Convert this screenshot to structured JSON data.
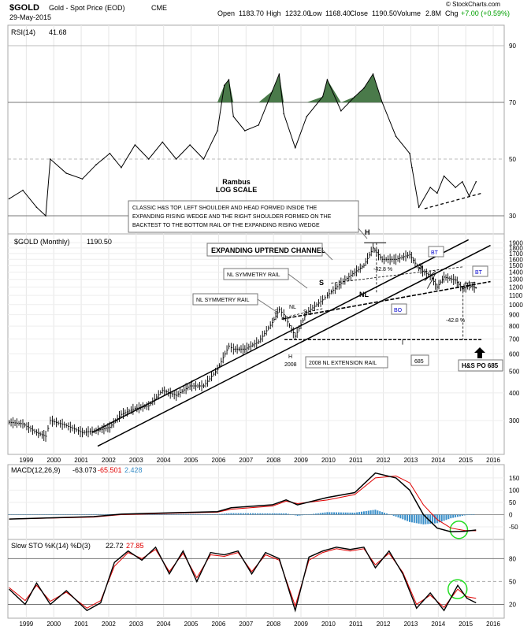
{
  "header": {
    "symbol": "$GOLD",
    "desc": "Gold - Spot Price (EOD)",
    "exchange": "CME",
    "date": "29-May-2015",
    "open_lbl": "Open",
    "open": "1183.70",
    "high_lbl": "High",
    "high": "1232.00",
    "low_lbl": "Low",
    "low": "1168.40",
    "close_lbl": "Close",
    "close": "1190.50",
    "volume_lbl": "Volume",
    "volume": "2.8M",
    "chg_lbl": "Chg",
    "chg": "+7.00 (+0.59%)",
    "chg_color": "#00a000",
    "watermark": "© StockCharts.com"
  },
  "author": {
    "name": "Rambus",
    "scale": "LOG SCALE"
  },
  "colors": {
    "rsi_fill": "#4a7a4a",
    "macd_signal": "#e00000",
    "macd_hist": "#3a8fc9",
    "sto_d": "#e00000",
    "circle": "#22dd22",
    "bt": "#0000cc"
  },
  "rsi_panel": {
    "label": "RSI(14)",
    "value": "41.68"
  },
  "price_panel": {
    "label": "$GOLD (Monthly)",
    "value": "1190.50"
  },
  "macd_panel": {
    "label": "MACD(12,26,9)",
    "v1": "-63.073",
    "v2": "-65.501",
    "v3": "2.428"
  },
  "sto_panel": {
    "label": "Slow STO %K(14) %D(3)",
    "v1": "22.72",
    "v2": "27.85"
  },
  "years": [
    "1999",
    "2000",
    "2001",
    "2002",
    "2003",
    "2004",
    "2005",
    "2006",
    "2007",
    "2008",
    "2009",
    "2010",
    "2011",
    "2012",
    "2013",
    "2014",
    "2015",
    "2016"
  ],
  "annotations": {
    "box1": "CLASSIC H&S TOP. LEFT SHOULDER AND HEAD FORMED INSIDE THE",
    "box2": "EXPANDING RISING WEDGE AND THE RIGHT SHOULDER FORMED ON THE",
    "box3": "BACKTEST TO THE BOTTOM RAIL OF THE EXPANDING RISING WEDGE",
    "channel": "EXPANDING UPTREND CHANNEL",
    "nl_sym1": "NL SYMMETRY RAIL",
    "nl_sym2": "NL SYMMETRY RAIL",
    "nl_ext": "2008 NL EXTENSION RAIL",
    "po": "H&S PO 685",
    "val685": "685",
    "pct1": "-42.8 %",
    "pct2": "-42.8 %",
    "nl": "NL",
    "nl2": "NL",
    "h1": "H",
    "h2": "H",
    "s1": "S",
    "s2": "S",
    "s3": "S",
    "s4": "S",
    "y2008": "2008",
    "bt1": "BT",
    "bt2": "BT",
    "bo": "BO"
  },
  "chart_data": [
    {
      "type": "line",
      "title": "RSI(14)",
      "ylim": [
        25,
        95
      ],
      "yticks": [
        30,
        50,
        70,
        90
      ],
      "x": [
        "1998-05",
        "1998-11",
        "1999-05",
        "1999-09",
        "1999-11",
        "2000-06",
        "2001-01",
        "2001-07",
        "2002-01",
        "2002-06",
        "2002-12",
        "2003-06",
        "2003-12",
        "2004-06",
        "2004-12",
        "2005-06",
        "2005-12",
        "2006-03",
        "2006-05",
        "2006-07",
        "2006-12",
        "2007-06",
        "2007-12",
        "2008-03",
        "2008-05",
        "2008-10",
        "2009-03",
        "2009-10",
        "2009-12",
        "2010-06",
        "2010-12",
        "2011-04",
        "2011-08",
        "2011-12",
        "2012-06",
        "2012-12",
        "2013-01",
        "2013-04",
        "2013-09",
        "2013-12",
        "2014-03",
        "2014-08",
        "2014-11",
        "2015-02",
        "2015-05"
      ],
      "values": [
        36,
        39,
        33,
        30,
        50,
        45,
        43,
        48,
        52,
        47,
        55,
        50,
        56,
        50,
        55,
        50,
        60,
        76,
        78,
        65,
        60,
        62,
        74,
        80,
        66,
        54,
        65,
        72,
        78,
        67,
        72,
        75,
        80,
        70,
        58,
        52,
        47,
        33,
        40,
        38,
        44,
        40,
        42,
        37,
        42
      ]
    },
    {
      "type": "bar",
      "title": "$GOLD (Monthly)",
      "scale": "log",
      "ylim": [
        220,
        2000
      ],
      "yticks": [
        300,
        400,
        500,
        600,
        700,
        800,
        900,
        1000,
        1100,
        1200,
        1300,
        1400,
        1500,
        1600,
        1700,
        1800,
        1900
      ],
      "x": [
        "1998-05",
        "1998-11",
        "1999-05",
        "1999-09",
        "1999-11",
        "2000-06",
        "2001-01",
        "2001-07",
        "2002-01",
        "2002-06",
        "2002-12",
        "2003-06",
        "2003-12",
        "2004-06",
        "2004-12",
        "2005-06",
        "2005-12",
        "2006-05",
        "2006-07",
        "2006-12",
        "2007-06",
        "2007-12",
        "2008-03",
        "2008-05",
        "2008-10",
        "2009-03",
        "2009-10",
        "2009-12",
        "2010-06",
        "2010-12",
        "2011-04",
        "2011-08",
        "2011-12",
        "2012-06",
        "2012-12",
        "2013-04",
        "2013-09",
        "2013-12",
        "2014-03",
        "2014-08",
        "2014-11",
        "2015-02",
        "2015-05"
      ],
      "values": [
        295,
        290,
        265,
        255,
        300,
        285,
        265,
        270,
        280,
        320,
        340,
        350,
        410,
        390,
        430,
        430,
        510,
        650,
        630,
        630,
        680,
        830,
        950,
        900,
        720,
        920,
        1050,
        1100,
        1250,
        1400,
        1500,
        1800,
        1600,
        1600,
        1680,
        1450,
        1350,
        1200,
        1330,
        1290,
        1180,
        1220,
        1190
      ]
    },
    {
      "type": "line",
      "title": "MACD(12,26,9)",
      "ylim": [
        -95,
        185
      ],
      "yticks": [
        -50,
        0,
        50,
        100,
        150
      ],
      "x": [
        "1998-05",
        "2001-06",
        "2002-06",
        "2004-06",
        "2005-12",
        "2006-06",
        "2007-12",
        "2008-06",
        "2008-11",
        "2009-12",
        "2010-12",
        "2011-09",
        "2012-06",
        "2012-12",
        "2013-06",
        "2013-12",
        "2014-06",
        "2014-12",
        "2015-05"
      ],
      "series": [
        {
          "name": "MACD",
          "values": [
            -18,
            -8,
            2,
            8,
            12,
            28,
            40,
            60,
            40,
            70,
            90,
            170,
            150,
            100,
            0,
            -55,
            -70,
            -68,
            -63
          ]
        },
        {
          "name": "Signal",
          "values": [
            -18,
            -10,
            0,
            6,
            10,
            22,
            35,
            55,
            45,
            60,
            82,
            150,
            158,
            130,
            40,
            -20,
            -55,
            -65,
            -66
          ]
        },
        {
          "name": "Histogram",
          "values": [
            0,
            2,
            2,
            2,
            2,
            6,
            5,
            5,
            -5,
            10,
            8,
            20,
            -8,
            -30,
            -40,
            -35,
            -15,
            -3,
            2
          ]
        }
      ]
    },
    {
      "type": "line",
      "title": "Slow STO %K(14) %D(3)",
      "ylim": [
        5,
        100
      ],
      "yticks": [
        20,
        50,
        80
      ],
      "x": [
        "1998-05",
        "1998-12",
        "1999-05",
        "1999-11",
        "2000-06",
        "2001-03",
        "2001-09",
        "2002-03",
        "2002-09",
        "2003-03",
        "2003-09",
        "2004-03",
        "2004-09",
        "2005-03",
        "2005-09",
        "2006-03",
        "2006-09",
        "2007-03",
        "2007-09",
        "2008-03",
        "2008-10",
        "2009-04",
        "2009-10",
        "2010-04",
        "2010-10",
        "2011-04",
        "2011-09",
        "2012-03",
        "2012-09",
        "2013-03",
        "2013-09",
        "2014-03",
        "2014-09",
        "2015-01",
        "2015-05"
      ],
      "series": [
        {
          "name": "%K",
          "values": [
            40,
            20,
            48,
            20,
            38,
            12,
            22,
            75,
            90,
            78,
            95,
            60,
            90,
            50,
            88,
            85,
            90,
            60,
            88,
            80,
            12,
            82,
            90,
            95,
            92,
            95,
            68,
            90,
            60,
            15,
            35,
            12,
            45,
            28,
            22
          ]
        },
        {
          "name": "%D",
          "values": [
            42,
            25,
            45,
            24,
            36,
            15,
            25,
            70,
            88,
            80,
            92,
            63,
            87,
            55,
            85,
            83,
            88,
            63,
            85,
            78,
            18,
            78,
            88,
            93,
            90,
            93,
            72,
            87,
            62,
            20,
            32,
            16,
            40,
            30,
            28
          ]
        }
      ]
    }
  ]
}
